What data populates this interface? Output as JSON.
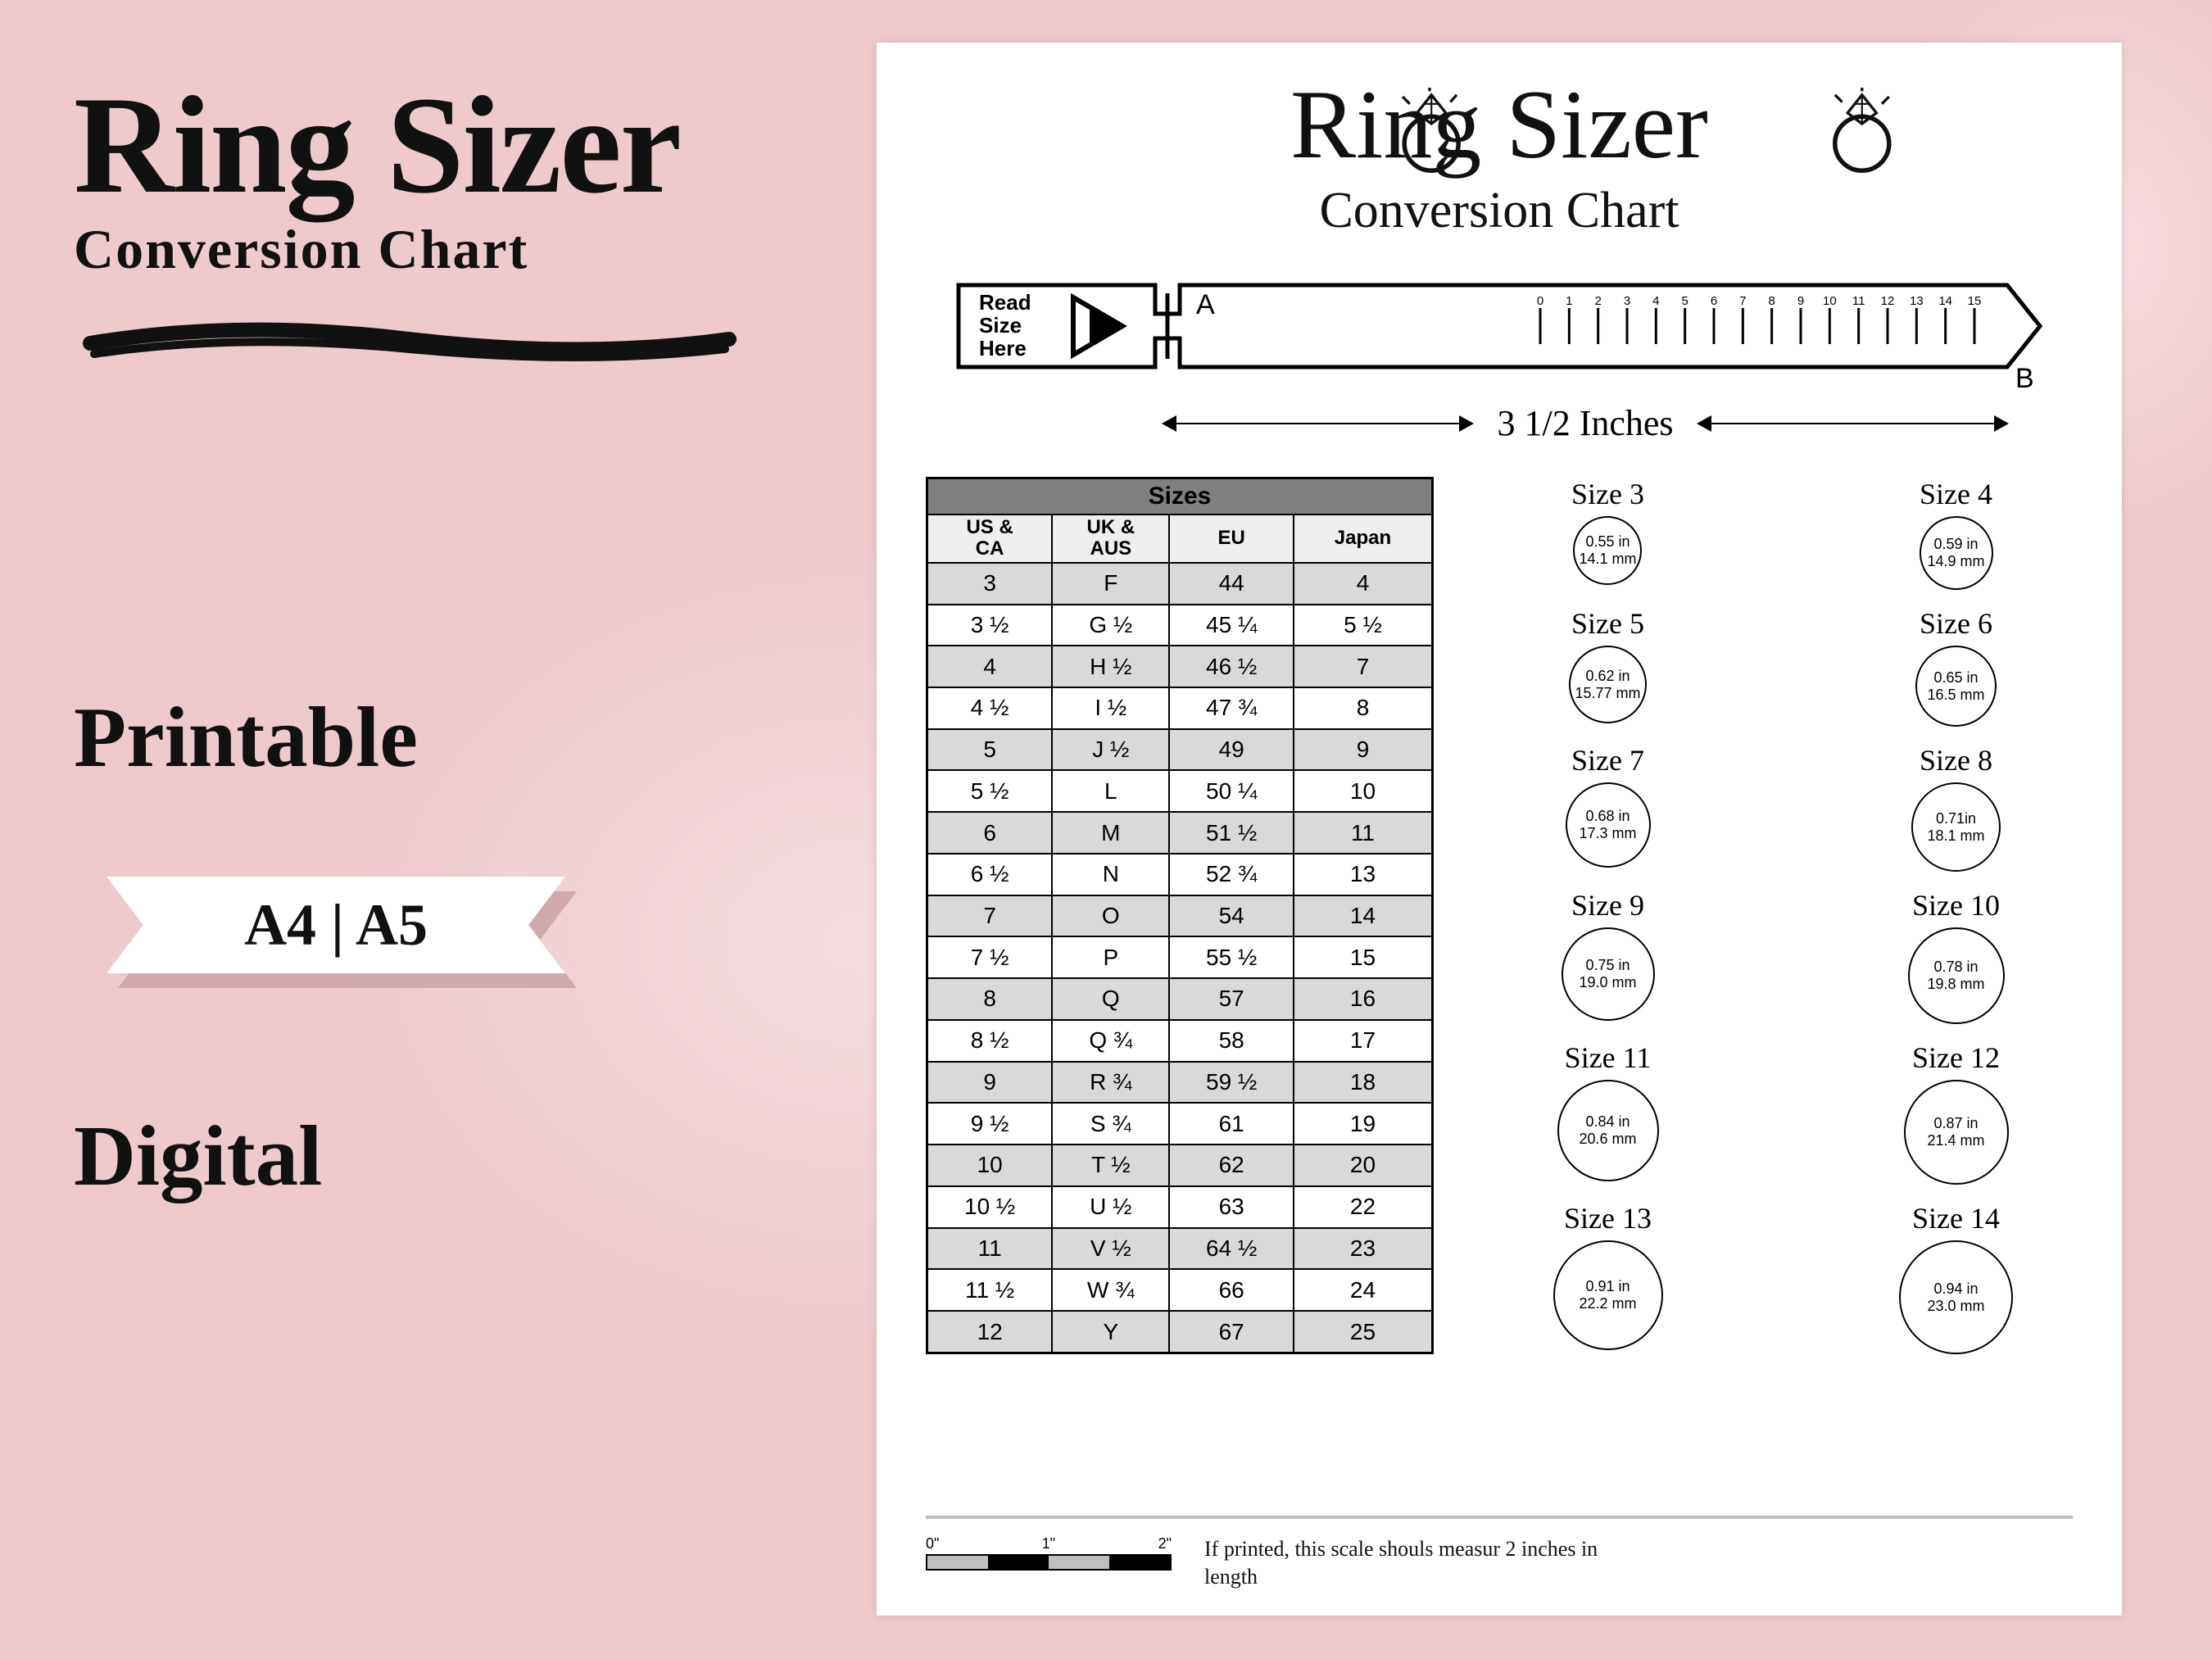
{
  "colors": {
    "background": "#eecacd",
    "page_bg": "#ffffff",
    "ink": "#111111",
    "table_header_bg": "#808080",
    "table_subheader_bg": "#eeeeee",
    "table_row_shade": "#d9d9d9",
    "footer_rule": "#bfbfbf"
  },
  "typography": {
    "script_font": "Brush Script MT",
    "serif_font": "Georgia",
    "sans_font": "Arial",
    "left_title_pt": 170,
    "left_subtitle_pt": 68,
    "page_title_pt": 120,
    "page_subtitle_pt": 62,
    "table_body_pt": 28,
    "circle_label_pt": 36
  },
  "left": {
    "title": "Ring Sizer",
    "subtitle": "Conversion  Chart",
    "printable": "Printable",
    "format": "A4 | A5",
    "digital": "Digital"
  },
  "page": {
    "title": "Ring Sizer",
    "subtitle": "Conversion Chart",
    "tape": {
      "read_label": "Read\nSize\nHere",
      "end_a": "A",
      "end_b": "B",
      "length_label": "3 1/2 Inches",
      "ticks": [
        "0",
        "1",
        "2",
        "3",
        "4",
        "5",
        "6",
        "7",
        "8",
        "9",
        "10",
        "11",
        "12",
        "13",
        "14",
        "15"
      ]
    },
    "table": {
      "header": "Sizes",
      "columns": [
        "US & CA",
        "UK & AUS",
        "EU",
        "Japan"
      ],
      "rows": [
        [
          "3",
          "F",
          "44",
          "4"
        ],
        [
          "3 ½",
          "G ½",
          "45 ¼",
          "5 ½"
        ],
        [
          "4",
          "H ½",
          "46 ½",
          "7"
        ],
        [
          "4 ½",
          "I ½",
          "47 ¾",
          "8"
        ],
        [
          "5",
          "J ½",
          "49",
          "9"
        ],
        [
          "5 ½",
          "L",
          "50 ¼",
          "10"
        ],
        [
          "6",
          "M",
          "51 ½",
          "11"
        ],
        [
          "6 ½",
          "N",
          "52 ¾",
          "13"
        ],
        [
          "7",
          "O",
          "54",
          "14"
        ],
        [
          "7 ½",
          "P",
          "55 ½",
          "15"
        ],
        [
          "8",
          "Q",
          "57",
          "16"
        ],
        [
          "8 ½",
          "Q ¾",
          "58",
          "17"
        ],
        [
          "9",
          "R ¾",
          "59 ½",
          "18"
        ],
        [
          "9 ½",
          "S ¾",
          "61",
          "19"
        ],
        [
          "10",
          "T ½",
          "62",
          "20"
        ],
        [
          "10 ½",
          "U ½",
          "63",
          "22"
        ],
        [
          "11",
          "V ½",
          "64 ½",
          "23"
        ],
        [
          "11 ½",
          "W ¾",
          "66",
          "24"
        ],
        [
          "12",
          "Y",
          "67",
          "25"
        ]
      ]
    },
    "circles": [
      {
        "label": "Size 3",
        "in": "0.55 in",
        "mm": "14.1 mm",
        "d": 84
      },
      {
        "label": "Size 4",
        "in": "0.59 in",
        "mm": "14.9 mm",
        "d": 90
      },
      {
        "label": "Size 5",
        "in": "0.62 in",
        "mm": "15.77 mm",
        "d": 95
      },
      {
        "label": "Size 6",
        "in": "0.65 in",
        "mm": "16.5 mm",
        "d": 99
      },
      {
        "label": "Size 7",
        "in": "0.68 in",
        "mm": "17.3 mm",
        "d": 104
      },
      {
        "label": "Size 8",
        "in": "0.71in",
        "mm": "18.1 mm",
        "d": 109
      },
      {
        "label": "Size 9",
        "in": "0.75 in",
        "mm": "19.0 mm",
        "d": 114
      },
      {
        "label": "Size 10",
        "in": "0.78 in",
        "mm": "19.8 mm",
        "d": 118
      },
      {
        "label": "Size 11",
        "in": "0.84 in",
        "mm": "20.6 mm",
        "d": 124
      },
      {
        "label": "Size 12",
        "in": "0.87 in",
        "mm": "21.4 mm",
        "d": 128
      },
      {
        "label": "Size 13",
        "in": "0.91 in",
        "mm": "22.2 mm",
        "d": 134
      },
      {
        "label": "Size 14",
        "in": "0.94 in",
        "mm": "23.0 mm",
        "d": 139
      }
    ],
    "footer": {
      "scale_labels": [
        "0\"",
        "1\"",
        "2\""
      ],
      "scale_segments": [
        "#bfbfbf",
        "#000000",
        "#bfbfbf",
        "#000000"
      ],
      "note": "If printed, this scale shouls measur 2 inches in length"
    }
  }
}
